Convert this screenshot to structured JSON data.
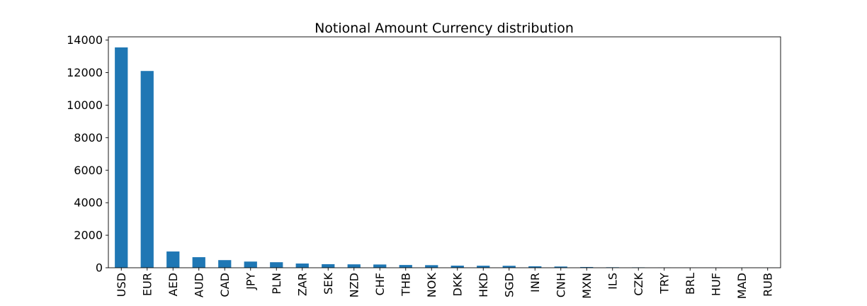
{
  "chart_data": {
    "type": "bar",
    "title": "Notional Amount Currency distribution",
    "xlabel": "",
    "ylabel": "",
    "categories": [
      "USD",
      "EUR",
      "AED",
      "AUD",
      "CAD",
      "JPY",
      "PLN",
      "ZAR",
      "SEK",
      "NZD",
      "CHF",
      "THB",
      "NOK",
      "DKK",
      "HKD",
      "SGD",
      "INR",
      "CNH",
      "MXN",
      "ILS",
      "CZK",
      "TRY",
      "BRL",
      "HUF",
      "MAD",
      "RUB"
    ],
    "values": [
      13550,
      12100,
      1000,
      650,
      470,
      380,
      340,
      260,
      220,
      210,
      200,
      170,
      160,
      130,
      125,
      120,
      90,
      75,
      45,
      30,
      25,
      8,
      6,
      5,
      3,
      2
    ],
    "ylim": [
      0,
      14200
    ],
    "yticks": [
      "0",
      "2000",
      "4000",
      "6000",
      "8000",
      "10000",
      "12000",
      "14000"
    ],
    "bar_color": "#1f77b4",
    "grid": false,
    "legend": "none"
  }
}
